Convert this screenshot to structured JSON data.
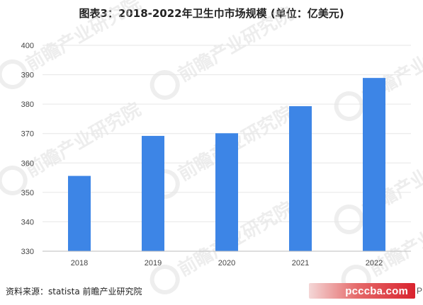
{
  "chart_data": {
    "type": "bar",
    "title": "图表3：2018-2022年卫生巾市场规模 (单位：亿美元)",
    "categories": [
      "2018",
      "2019",
      "2020",
      "2021",
      "2022"
    ],
    "series": [
      {
        "values": [
          355.6,
          369.2,
          370.1,
          379.3,
          388.9
        ]
      }
    ],
    "ylim": [
      330,
      400
    ],
    "yticks": [
      330,
      340,
      350,
      360,
      370,
      380,
      390,
      400
    ],
    "grid": true,
    "legend": "none",
    "bar_color": "#3d85e6"
  },
  "source": {
    "label": "资料来源：",
    "text": "statista 前瞻产业研究院"
  },
  "watermark": {
    "text": "前瞻产业研究院"
  },
  "badge": {
    "text": "pcccba.com",
    "tail": "P"
  }
}
